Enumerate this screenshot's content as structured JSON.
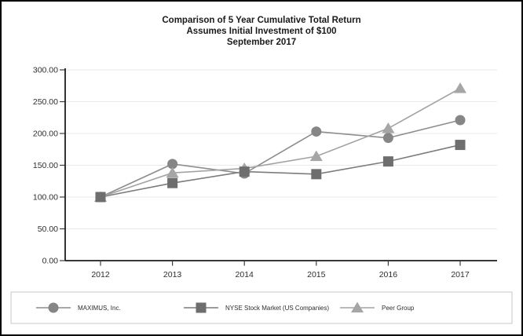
{
  "title": {
    "line1": "Comparison of 5 Year Cumulative Total Return",
    "line2": "Assumes Initial Investment of $100",
    "line3": "September 2017"
  },
  "chart_data": {
    "type": "line",
    "title": "Comparison of 5 Year Cumulative Total Return",
    "subtitle": "Assumes Initial Investment of $100",
    "subtitle2": "September 2017",
    "x": [
      2012,
      2013,
      2014,
      2015,
      2016,
      2017
    ],
    "series": [
      {
        "name": "MAXIMUS, Inc.",
        "marker": "circle",
        "marker_color": "#868686",
        "line_color": "#8d8d8d",
        "values": [
          100,
          152,
          137,
          203,
          193,
          221
        ]
      },
      {
        "name": "NYSE Stock Market (US Companies)",
        "marker": "square",
        "marker_color": "#6e6e6e",
        "line_color": "#7c7c7c",
        "values": [
          100,
          122,
          140,
          136,
          156,
          182
        ]
      },
      {
        "name": "Peer Group",
        "marker": "triangle",
        "marker_color": "#a6a6a6",
        "line_color": "#a3a3a3",
        "values": [
          100,
          138,
          145,
          164,
          208,
          271
        ]
      }
    ],
    "ylim": [
      0,
      300
    ],
    "ytick_step": 50,
    "ytick_labels": [
      "0.00",
      "50.00",
      "100.00",
      "150.00",
      "200.00",
      "250.00",
      "300.00"
    ],
    "xlabel": "",
    "ylabel": "",
    "grid": "horizontal",
    "legend_position": "bottom"
  },
  "colors": {
    "background": "#ffffff",
    "frame_border": "#000000",
    "axis": "#1c1c1c",
    "tick": "#3c3c3c",
    "gridline": "#e9e9e9",
    "tick_label": "#2e2e2e",
    "legend_border": "#c9c9c9",
    "legend_label": "#2e2e2e"
  }
}
